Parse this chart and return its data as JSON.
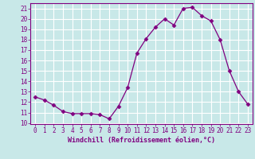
{
  "x": [
    0,
    1,
    2,
    3,
    4,
    5,
    6,
    7,
    8,
    9,
    10,
    11,
    12,
    13,
    14,
    15,
    16,
    17,
    18,
    19,
    20,
    21,
    22,
    23
  ],
  "y": [
    12.5,
    12.2,
    11.7,
    11.1,
    10.9,
    10.9,
    10.9,
    10.8,
    10.4,
    11.6,
    13.4,
    16.7,
    18.1,
    19.2,
    20.0,
    19.4,
    21.0,
    21.1,
    20.3,
    19.8,
    18.0,
    15.0,
    13.0,
    11.8
  ],
  "line_color": "#800080",
  "marker": "D",
  "marker_size": 2.5,
  "background_color": "#c8e8e8",
  "grid_color": "#ffffff",
  "xlabel": "Windchill (Refroidissement éolien,°C)",
  "xlim": [
    -0.5,
    23.5
  ],
  "ylim": [
    9.9,
    21.5
  ],
  "yticks": [
    10,
    11,
    12,
    13,
    14,
    15,
    16,
    17,
    18,
    19,
    20,
    21
  ],
  "xticks": [
    0,
    1,
    2,
    3,
    4,
    5,
    6,
    7,
    8,
    9,
    10,
    11,
    12,
    13,
    14,
    15,
    16,
    17,
    18,
    19,
    20,
    21,
    22,
    23
  ],
  "tick_color": "#800080",
  "label_color": "#800080",
  "spine_color": "#800080"
}
